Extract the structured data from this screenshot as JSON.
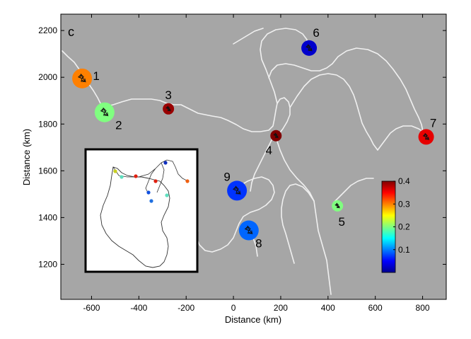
{
  "chart_data": {
    "type": "scatter",
    "panel_label": "c",
    "xlabel": "Distance (km)",
    "ylabel": "Distance (km)",
    "xlim": [
      -730,
      900
    ],
    "ylim": [
      1050,
      2270
    ],
    "xticks": [
      -600,
      -400,
      -200,
      0,
      200,
      400,
      600,
      800
    ],
    "yticks": [
      1200,
      1400,
      1600,
      1800,
      2000,
      2200
    ],
    "grid": false,
    "background": "#a6a6a6",
    "track_color": "#f2f2f2",
    "eddy_track_color": "#222222",
    "points": [
      {
        "label": "1",
        "x": -640,
        "y": 1995,
        "value": 0.3,
        "size": "large"
      },
      {
        "label": "2",
        "x": -545,
        "y": 1850,
        "value": 0.2,
        "size": "large"
      },
      {
        "label": "3",
        "x": -275,
        "y": 1865,
        "value": 0.39,
        "size": "small"
      },
      {
        "label": "4",
        "x": 180,
        "y": 1750,
        "value": 0.4,
        "size": "small"
      },
      {
        "label": "5",
        "x": 440,
        "y": 1450,
        "value": 0.2,
        "size": "small"
      },
      {
        "label": "6",
        "x": 320,
        "y": 2125,
        "value": 0.03,
        "size": "medium"
      },
      {
        "label": "7",
        "x": 815,
        "y": 1745,
        "value": 0.36,
        "size": "medium"
      },
      {
        "label": "8",
        "x": 65,
        "y": 1345,
        "value": 0.09,
        "size": "large"
      },
      {
        "label": "9",
        "x": 15,
        "y": 1515,
        "value": 0.07,
        "size": "large"
      }
    ],
    "colorbar": {
      "min": 0.0,
      "max": 0.4,
      "ticks": [
        0.1,
        0.2,
        0.3,
        0.4
      ],
      "tick_labels": [
        "0.1",
        "0.2",
        "0.3",
        "0.4"
      ],
      "colormap": "jet"
    },
    "inset": {
      "description_visible": false,
      "markers": [
        {
          "color": "#c8d020"
        },
        {
          "color": "#60e0c0"
        },
        {
          "color": "#e02010"
        },
        {
          "color": "#e02010"
        },
        {
          "color": "#60e0c0"
        },
        {
          "color": "#1030c0"
        },
        {
          "color": "#f06010"
        },
        {
          "color": "#2070e0"
        },
        {
          "color": "#1050e0"
        }
      ]
    }
  }
}
